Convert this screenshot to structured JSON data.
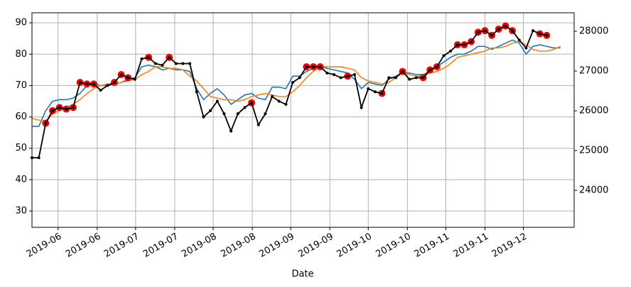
{
  "chart_data": {
    "type": "line",
    "xlabel": "Date",
    "xlim": [
      0,
      79
    ],
    "xticks": [
      {
        "value": 3.8,
        "label": "2019-06"
      },
      {
        "value": 9.5,
        "label": "2019-06"
      },
      {
        "value": 15.1,
        "label": "2019-07"
      },
      {
        "value": 20.8,
        "label": "2019-07"
      },
      {
        "value": 26.4,
        "label": "2019-08"
      },
      {
        "value": 32.1,
        "label": "2019-08"
      },
      {
        "value": 37.7,
        "label": "2019-09"
      },
      {
        "value": 43.4,
        "label": "2019-09"
      },
      {
        "value": 49.0,
        "label": "2019-10"
      },
      {
        "value": 54.7,
        "label": "2019-10"
      },
      {
        "value": 60.3,
        "label": "2019-11"
      },
      {
        "value": 66.0,
        "label": "2019-11"
      },
      {
        "value": 71.6,
        "label": "2019-12"
      }
    ],
    "ylim": [
      24.8,
      93.2
    ],
    "yticks": [
      30,
      40,
      50,
      60,
      70,
      80,
      90
    ],
    "y2lim": [
      23070,
      28465
    ],
    "y2ticks": [
      24000,
      25000,
      26000,
      27000,
      28000
    ],
    "grid": true,
    "x": [
      0,
      1,
      2,
      3,
      4,
      5,
      6,
      7,
      8,
      9,
      10,
      11,
      12,
      13,
      14,
      15,
      16,
      17,
      18,
      19,
      20,
      21,
      22,
      23,
      24,
      25,
      26,
      27,
      28,
      29,
      30,
      31,
      32,
      33,
      34,
      35,
      36,
      37,
      38,
      39,
      40,
      41,
      42,
      43,
      44,
      45,
      46,
      47,
      48,
      49,
      50,
      51,
      52,
      53,
      54,
      55,
      56,
      57,
      58,
      59,
      60,
      61,
      62,
      63,
      64,
      65,
      66,
      67,
      68,
      69,
      70,
      71,
      72,
      73,
      74,
      75,
      76,
      77
    ],
    "series": [
      {
        "color": "#1f77b4",
        "style": "line",
        "values": [
          57,
          57,
          62,
          65,
          65.5,
          65.5,
          66,
          67.5,
          70,
          70.5,
          70,
          70,
          70.5,
          71,
          72,
          72.5,
          76,
          76.5,
          76,
          75,
          75.5,
          75,
          75,
          74.5,
          69,
          65.5,
          67.5,
          69,
          67,
          64,
          65.5,
          67,
          67.5,
          66,
          65.5,
          69.5,
          69.5,
          69,
          73,
          73,
          74.5,
          75.5,
          76,
          75.5,
          75,
          74.5,
          74,
          72,
          69,
          71,
          70.5,
          70,
          72,
          73,
          74,
          74,
          73.5,
          73.5,
          74.5,
          76,
          77.5,
          79,
          80,
          80,
          81,
          82.5,
          82.5,
          81.5,
          82.5,
          83.5,
          84.5,
          83.5,
          80,
          82.5,
          83,
          82.5,
          82,
          82
        ]
      },
      {
        "color": "#ff7f0e",
        "style": "line",
        "values": [
          59.5,
          59,
          58.5,
          61,
          62,
          63,
          64,
          65.5,
          67.5,
          69,
          70,
          70.5,
          70.5,
          71,
          71.5,
          72,
          73.5,
          74.5,
          76,
          76,
          75.5,
          75.5,
          75,
          73,
          71.5,
          69,
          66.5,
          66,
          65.5,
          65.5,
          65,
          65.5,
          66.5,
          67,
          67.5,
          67,
          66.5,
          66.5,
          68,
          70,
          72.5,
          74.5,
          76,
          76,
          76,
          76,
          75.5,
          75,
          72.5,
          71.5,
          71,
          70.5,
          71,
          72.5,
          74,
          73.5,
          73,
          73,
          74,
          74.5,
          75.5,
          77,
          79,
          79.5,
          80,
          80.5,
          81,
          82,
          82,
          82.5,
          83.5,
          84,
          83,
          81.5,
          81,
          81,
          81.5,
          82.5
        ]
      },
      {
        "color": "#ff0000",
        "style": "markers",
        "values": [
          null,
          null,
          58,
          62,
          63,
          62.5,
          63,
          71,
          70.5,
          70.5,
          null,
          null,
          71,
          73.5,
          72.5,
          null,
          null,
          79,
          null,
          null,
          79,
          null,
          null,
          null,
          null,
          null,
          null,
          null,
          null,
          null,
          null,
          null,
          64.5,
          null,
          null,
          null,
          null,
          null,
          null,
          null,
          76,
          76,
          76,
          null,
          null,
          null,
          73,
          null,
          null,
          null,
          null,
          67.5,
          null,
          null,
          74.5,
          null,
          null,
          72.5,
          75,
          76,
          null,
          null,
          83,
          83,
          84,
          87,
          87.5,
          86,
          88,
          89,
          87.5,
          null,
          null,
          null,
          86.5,
          86,
          null,
          null
        ]
      },
      {
        "color": "#000000",
        "style": "dotline",
        "values": [
          47,
          47,
          58,
          62,
          63,
          62.5,
          63,
          71,
          70.5,
          70.5,
          68.5,
          70,
          71,
          73.5,
          72.5,
          72,
          78.5,
          79,
          77,
          76.5,
          79,
          77,
          77,
          77,
          68,
          60,
          62,
          65,
          61,
          55.5,
          61,
          63,
          64.5,
          57.5,
          61,
          66.5,
          65,
          64,
          71,
          72.5,
          76,
          76,
          76,
          74,
          73.5,
          72.5,
          73,
          73.5,
          63,
          69,
          68,
          67.5,
          72.5,
          72.5,
          74.5,
          72,
          72.5,
          72.5,
          75,
          76,
          79.5,
          81,
          83,
          83,
          84,
          87,
          87.5,
          86,
          88,
          89,
          87.5,
          84.5,
          82,
          87.5,
          86.5,
          86,
          null,
          null
        ]
      }
    ]
  }
}
